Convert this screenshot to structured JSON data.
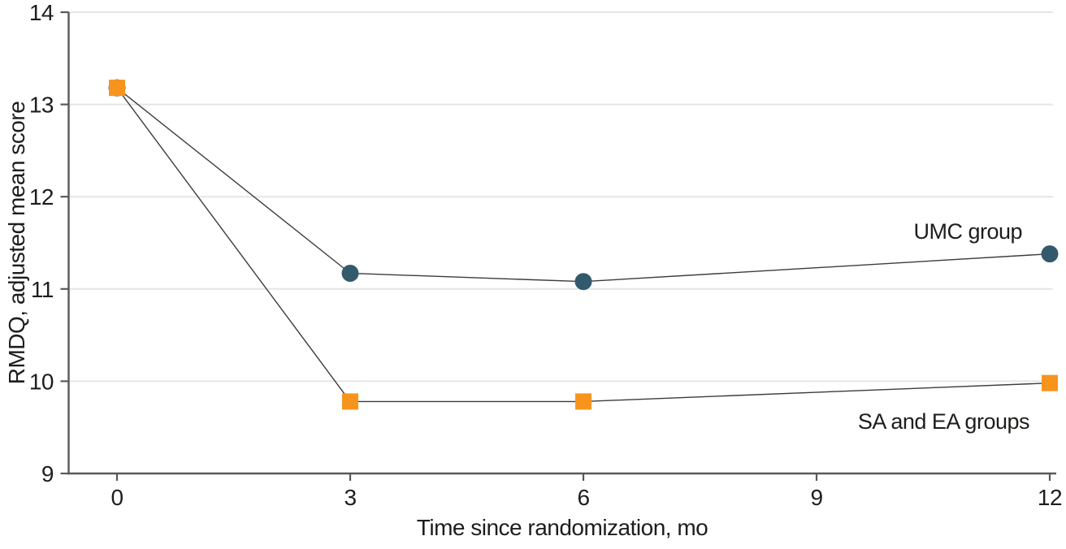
{
  "chart_data": {
    "type": "line",
    "title": "",
    "xlabel": "Time since randomization, mo",
    "ylabel": "RMDQ, adjusted mean score",
    "x_ticks": [
      0,
      3,
      6,
      9,
      12
    ],
    "y_ticks": [
      9,
      10,
      11,
      12,
      13,
      14
    ],
    "xlim": [
      0,
      12
    ],
    "ylim": [
      9,
      14
    ],
    "grid": "horizontal",
    "legend_position": "inline-annotations",
    "x": [
      0,
      3,
      6,
      12
    ],
    "series": [
      {
        "name": "UMC group",
        "marker": "circle",
        "color": "#335A6C",
        "values": [
          13.18,
          11.17,
          11.08,
          11.38
        ]
      },
      {
        "name": "SA and EA groups",
        "marker": "square",
        "color": "#F7941E",
        "values": [
          13.18,
          9.78,
          9.78,
          9.98
        ]
      }
    ],
    "line_color": "#3C3C3C",
    "axis_color": "#59595B",
    "grid_color": "#E5E5E5",
    "text_color": "#1D1D1B",
    "background": "#FFFFFF"
  }
}
